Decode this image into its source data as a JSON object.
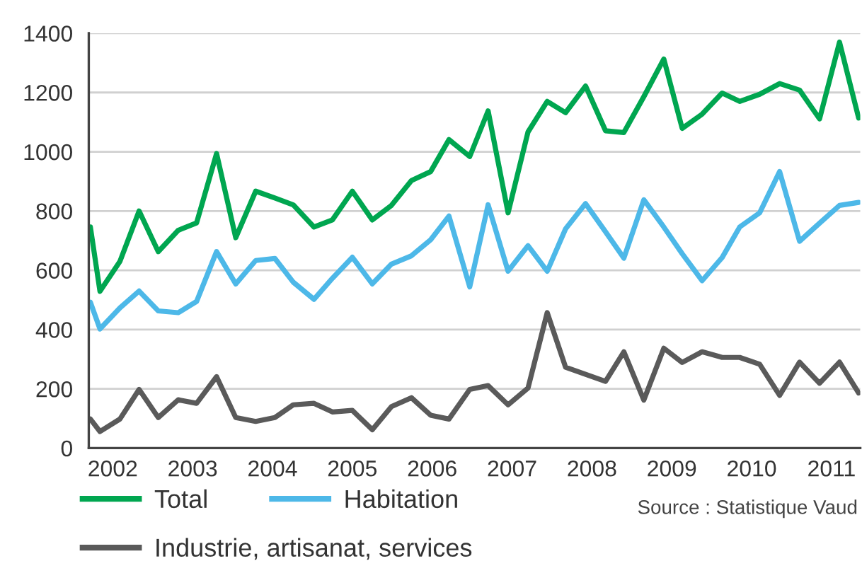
{
  "chart_data": {
    "type": "line",
    "x": [
      2001.72,
      2001.84,
      2002.09,
      2002.33,
      2002.57,
      2002.82,
      2003.05,
      2003.3,
      2003.54,
      2003.79,
      2004.03,
      2004.26,
      2004.52,
      2004.75,
      2005.0,
      2005.25,
      2005.49,
      2005.74,
      2005.98,
      2006.21,
      2006.47,
      2006.7,
      2006.95,
      2007.2,
      2007.44,
      2007.67,
      2007.92,
      2008.17,
      2008.4,
      2008.65,
      2008.9,
      2009.13,
      2009.38,
      2009.63,
      2009.85,
      2010.1,
      2010.35,
      2010.6,
      2010.85,
      2011.1,
      2011.34
    ],
    "series": [
      {
        "name": "Total",
        "color": "#00a650",
        "values": [
          746,
          529,
          630,
          800,
          663,
          735,
          760,
          994,
          710,
          867,
          844,
          821,
          746,
          770,
          867,
          770,
          819,
          903,
          933,
          1041,
          984,
          1138,
          794,
          1067,
          1170,
          1132,
          1222,
          1071,
          1065,
          1186,
          1313,
          1079,
          1127,
          1198,
          1170,
          1194,
          1230,
          1208,
          1111,
          1370,
          1114
        ]
      },
      {
        "name": "Habitation",
        "color": "#4db8e8",
        "values": [
          492,
          402,
          473,
          530,
          463,
          457,
          495,
          663,
          554,
          633,
          640,
          560,
          502,
          573,
          644,
          554,
          621,
          649,
          703,
          783,
          544,
          821,
          597,
          683,
          597,
          740,
          825,
          730,
          641,
          838,
          746,
          656,
          565,
          643,
          746,
          794,
          933,
          698,
          759,
          819,
          829
        ]
      },
      {
        "name": "Industrie, artisanat, services",
        "color": "#5a5a5a",
        "values": [
          98,
          56,
          98,
          198,
          103,
          163,
          151,
          241,
          103,
          90,
          103,
          146,
          151,
          122,
          127,
          62,
          140,
          170,
          111,
          98,
          198,
          211,
          146,
          203,
          457,
          273,
          249,
          225,
          325,
          162,
          337,
          289,
          325,
          306,
          306,
          283,
          178,
          290,
          219,
          290,
          186
        ]
      }
    ],
    "xlim": [
      2001.7,
      2011.36
    ],
    "xticks": [
      2002,
      2003,
      2004,
      2005,
      2006,
      2007,
      2008,
      2009,
      2010,
      2011
    ],
    "ylim": [
      0,
      1400
    ],
    "yticks": [
      0,
      200,
      400,
      600,
      800,
      1000,
      1200,
      1400
    ],
    "grid": "y",
    "legend": "bottom",
    "annotations": [
      "Source : Statistique Vaud"
    ]
  }
}
